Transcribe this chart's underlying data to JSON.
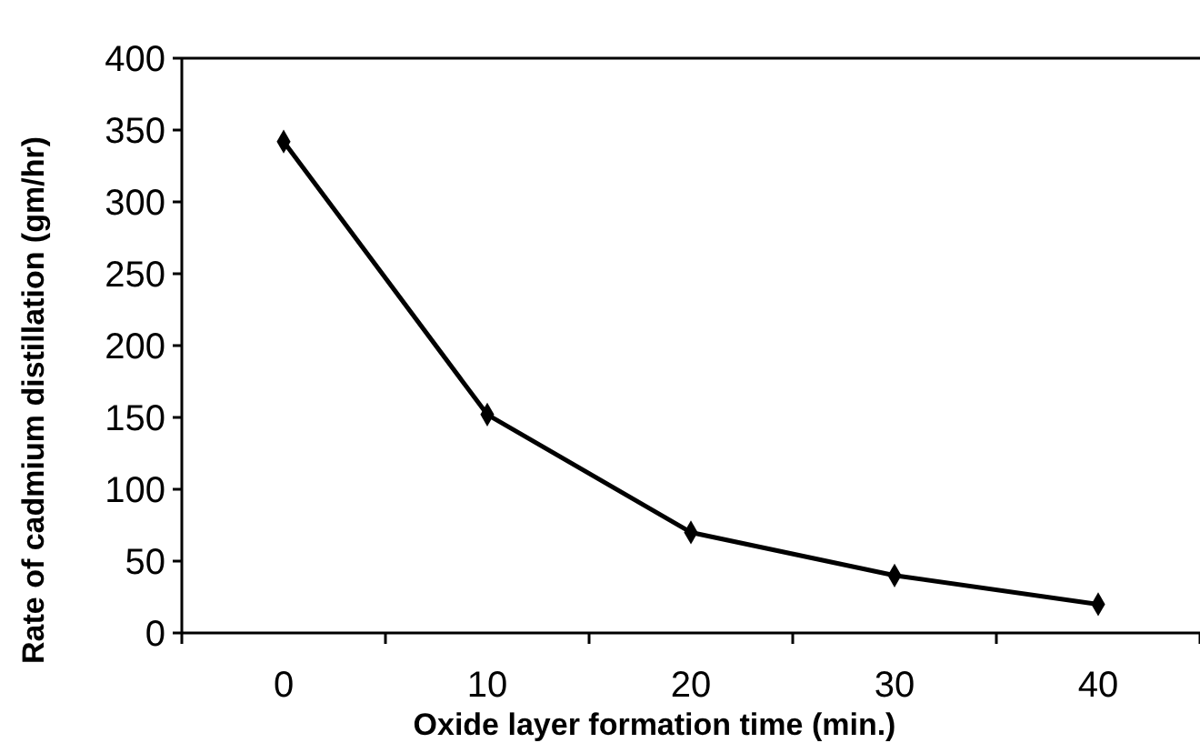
{
  "chart_data": {
    "type": "line",
    "xlabel": "Oxide layer formation time (min.)",
    "ylabel": "Rate of cadmium distillation (gm/hr)",
    "categories": [
      "0",
      "10",
      "20",
      "30",
      "40"
    ],
    "series": [
      {
        "color": "#000000",
        "values": [
          342,
          152,
          70,
          40,
          20
        ]
      }
    ],
    "ylim": [
      0,
      400
    ],
    "yticks": [
      0,
      50,
      100,
      150,
      200,
      250,
      300,
      350,
      400
    ],
    "grid": false,
    "marker": "diamond",
    "line_style": "solid"
  }
}
